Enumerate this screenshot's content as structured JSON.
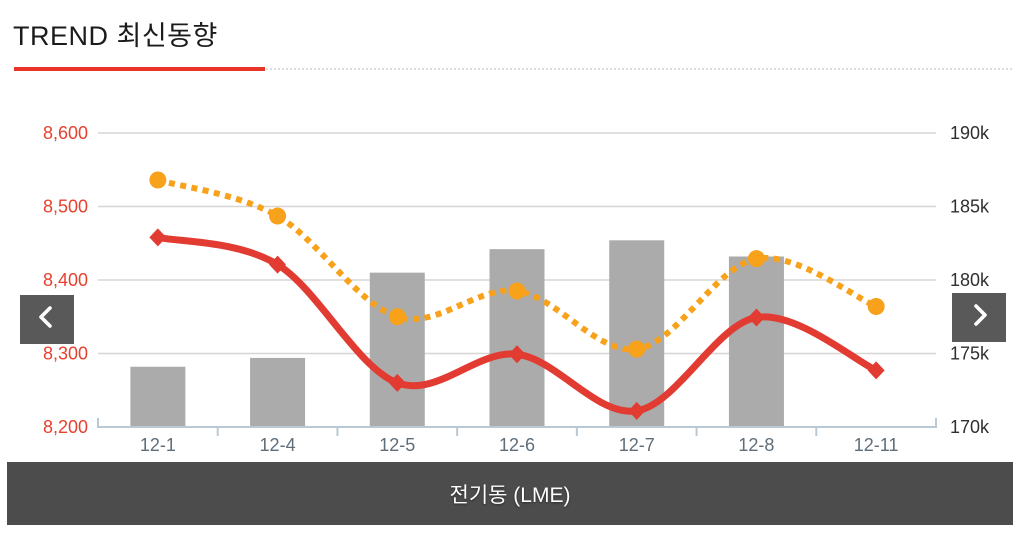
{
  "header": {
    "title": "TREND 최신동향"
  },
  "nav": {
    "prev_icon": "chevron-left",
    "next_icon": "chevron-right"
  },
  "footer": {
    "label": "전기동 (LME)"
  },
  "colors": {
    "accent_red": "#e23b32",
    "accent_orange": "#f8a11b",
    "bar_gray": "#ababab",
    "underline_red": "#e8332b",
    "gridline": "#d6d6d6",
    "axis_line": "#b9c8d4",
    "left_axis_label": "#e8402e",
    "right_axis_label": "#2f2f2f",
    "x_axis_label": "#5f6e7a",
    "nav_button_bg": "#595959",
    "footer_bg": "#4c4c4c"
  },
  "chart_data": {
    "type": "combo",
    "title": "TREND 최신동향",
    "subtitle": "전기동 (LME)",
    "categories": [
      "12-1",
      "12-4",
      "12-5",
      "12-6",
      "12-7",
      "12-8",
      "12-11"
    ],
    "series": [
      {
        "name": "price-solid-line",
        "type": "line",
        "axis": "left",
        "style": "solid",
        "marker": "diamond",
        "color": "#e23b32",
        "values": [
          8458,
          8421,
          8260,
          8299,
          8222,
          8349,
          8277
        ]
      },
      {
        "name": "price-dotted-line",
        "type": "line",
        "axis": "left",
        "style": "dotted",
        "marker": "circle",
        "color": "#f8a11b",
        "values": [
          8536,
          8487,
          8350,
          8385,
          8306,
          8429,
          8364
        ]
      },
      {
        "name": "stock-bars",
        "type": "bar",
        "axis": "right",
        "color": "#ababab",
        "values": [
          174.1,
          174.7,
          180.5,
          182.1,
          182.7,
          181.6,
          null
        ]
      }
    ],
    "left_axis": {
      "min": 8200,
      "max": 8600,
      "step": 100,
      "labels": [
        "8,200",
        "8,300",
        "8,400",
        "8,500",
        "8,600"
      ]
    },
    "right_axis": {
      "min": 170,
      "max": 190,
      "step": 5,
      "unit": "k",
      "labels": [
        "170k",
        "175k",
        "180k",
        "185k",
        "190k"
      ]
    },
    "grid": true,
    "legend": false
  }
}
